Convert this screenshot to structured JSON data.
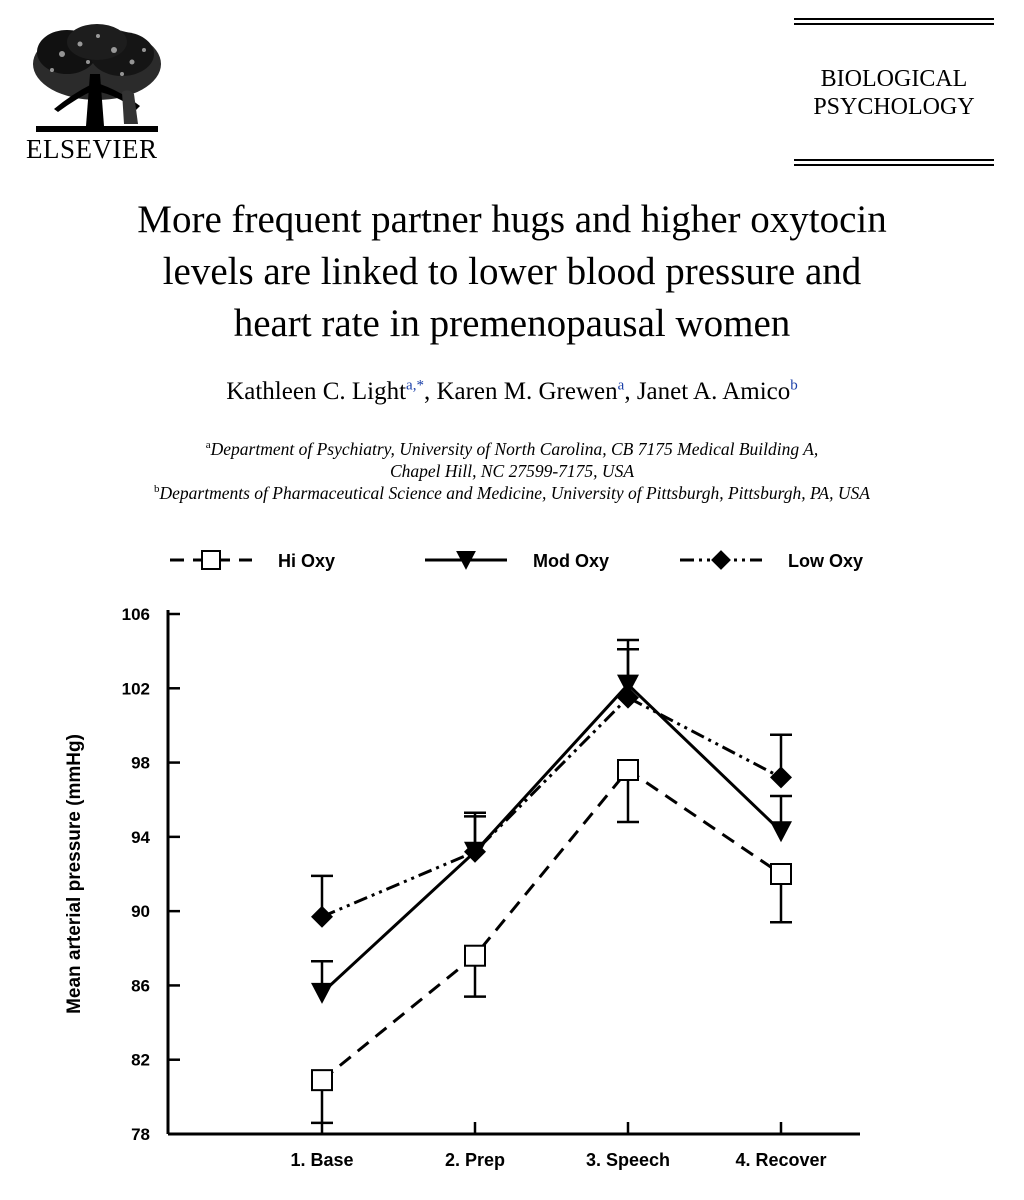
{
  "publisher": {
    "name": "ELSEVIER",
    "logo_icon": "elsevier-tree-logo"
  },
  "journal": {
    "line1": "BIOLOGICAL",
    "line2": "PSYCHOLOGY"
  },
  "article": {
    "title_line1": "More frequent partner hugs and higher oxytocin",
    "title_line2": "levels are linked to lower blood pressure and",
    "title_line3": "heart rate in premenopausal women",
    "authors": [
      {
        "name": "Kathleen C. Light",
        "sup": "a,*",
        "sep": ", "
      },
      {
        "name": "Karen M. Grewen",
        "sup": "a",
        "sep": ", "
      },
      {
        "name": "Janet A. Amico",
        "sup": "b",
        "sep": ""
      }
    ],
    "affiliations": [
      {
        "sup": "a",
        "line1": "Department of Psychiatry, University of North Carolina, CB 7175 Medical Building A,",
        "line2": "Chapel Hill, NC 27599-7175, USA"
      },
      {
        "sup": "b",
        "line1": "Departments of Pharmaceutical Science and Medicine, University of Pittsburgh, Pittsburgh, PA, USA"
      }
    ]
  },
  "chart_data": {
    "type": "line",
    "ylabel": "Mean arterial pressure (mmHg)",
    "xlabel": "",
    "categories": [
      "1. Base",
      "2. Prep",
      "3. Speech",
      "4. Recover"
    ],
    "ylim": [
      78,
      106
    ],
    "yticks": [
      78,
      82,
      86,
      90,
      94,
      98,
      102,
      106
    ],
    "legend_position": "top",
    "grid": false,
    "series": [
      {
        "name": "Hi Oxy",
        "marker": "open-square",
        "line": "dashed",
        "values": [
          80.9,
          87.6,
          97.6,
          92.0
        ],
        "error": [
          2.3,
          2.2,
          2.8,
          2.6
        ],
        "error_dir": [
          "down",
          "down",
          "down",
          "down"
        ]
      },
      {
        "name": "Mod Oxy",
        "marker": "filled-triangle-down",
        "line": "solid",
        "values": [
          85.6,
          93.2,
          102.2,
          94.3
        ],
        "error": [
          1.7,
          1.9,
          1.9,
          1.9
        ],
        "error_dir": [
          "up",
          "up",
          "up",
          "up"
        ]
      },
      {
        "name": "Low Oxy",
        "marker": "filled-diamond",
        "line": "dash-dot-dot",
        "values": [
          89.7,
          93.2,
          101.5,
          97.2
        ],
        "error": [
          2.2,
          2.1,
          3.1,
          2.3
        ],
        "error_dir": [
          "up",
          "up",
          "up",
          "up"
        ]
      }
    ]
  }
}
